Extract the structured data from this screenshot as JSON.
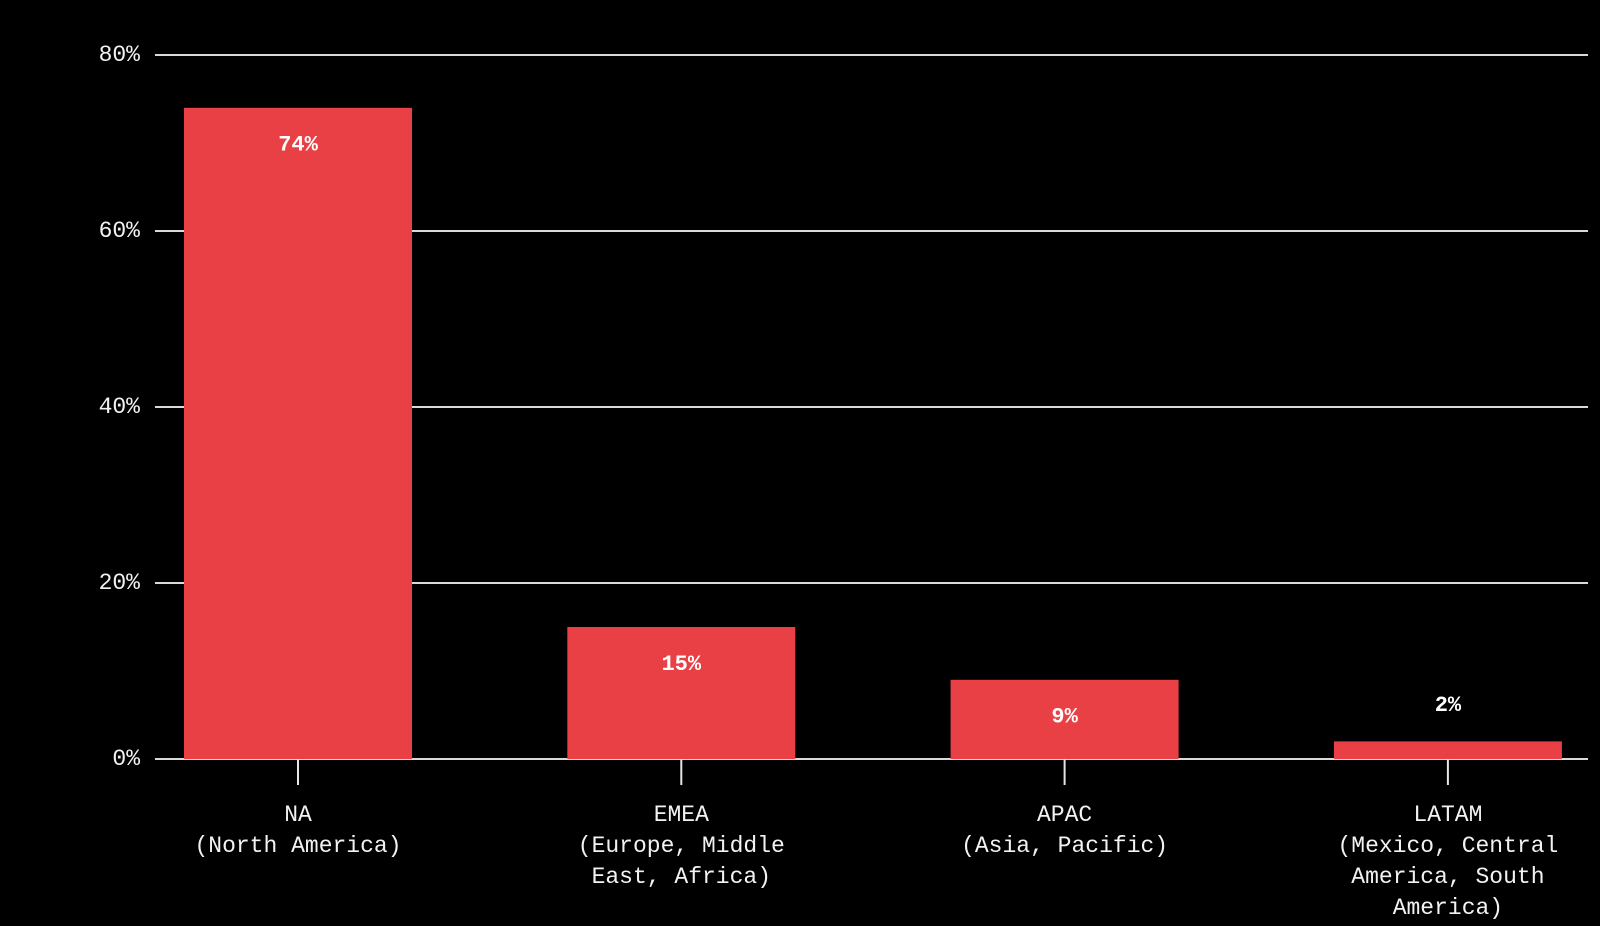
{
  "chart_data": {
    "type": "bar",
    "categories": [
      [
        "NA",
        "(North America)"
      ],
      [
        "EMEA",
        "(Europe, Middle",
        "East, Africa)"
      ],
      [
        "APAC",
        "(Asia, Pacific)"
      ],
      [
        "LATAM",
        "(Mexico, Central",
        "America, South",
        "America)"
      ]
    ],
    "values": [
      74,
      15,
      9,
      2
    ],
    "value_labels": [
      "74%",
      "15%",
      "9%",
      "2%"
    ],
    "color": "#e84045",
    "ylim": [
      0,
      80
    ],
    "yticks": [
      {
        "value": 0,
        "label": "0%"
      },
      {
        "value": 20,
        "label": "20%"
      },
      {
        "value": 40,
        "label": "40%"
      },
      {
        "value": 60,
        "label": "60%"
      },
      {
        "value": 80,
        "label": "80%"
      }
    ],
    "grid": true
  }
}
